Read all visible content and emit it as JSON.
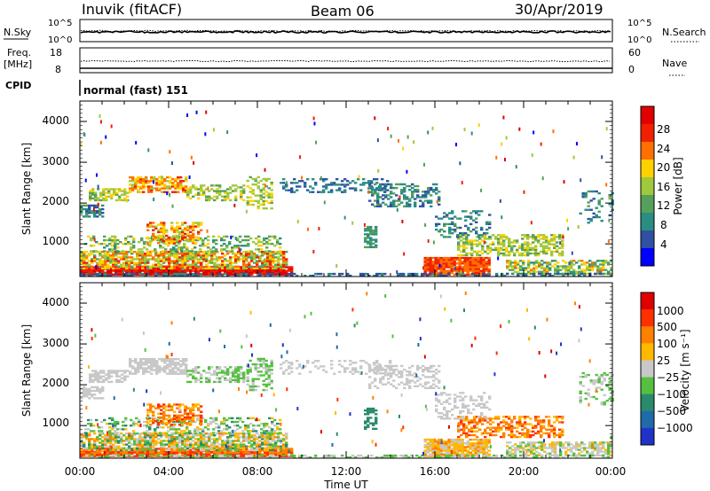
{
  "header": {
    "site": "Inuvik (fitACF)",
    "beam": "Beam 06",
    "date": "30/Apr/2019"
  },
  "top_panels": {
    "nsky_label": "N.Sky",
    "nsearch_label": "N.Search",
    "nsky_ticks": [
      "10^5",
      "10^0"
    ],
    "nsearch_ticks": [
      "10^5",
      "10^0"
    ],
    "freq_label": "Freq.",
    "freq_unit": "[MHz]",
    "freq_ticks": [
      "18",
      "8"
    ],
    "nave_label": "Nave",
    "nave_ticks": [
      "60",
      "0"
    ],
    "cpid_label": "CPID",
    "cpid_value": "normal (fast) 151"
  },
  "chart_data": [
    {
      "type": "heatmap",
      "name": "power",
      "ylabel": "Slant Range [km]",
      "xlabel": "",
      "ylim": [
        200,
        4500
      ],
      "y_ticks": [
        "4000",
        "3000",
        "2000",
        "1000"
      ],
      "colorbar_label": "Power [dB]",
      "colorbar_ticks": [
        "28",
        "24",
        "20",
        "16",
        "12",
        "8",
        "4"
      ],
      "colors": [
        "#0000ff",
        "#2f50a3",
        "#2a8d83",
        "#55a05a",
        "#a0c83c",
        "#ffd000",
        "#ff7000",
        "#f02000",
        "#e00000"
      ]
    },
    {
      "type": "heatmap",
      "name": "velocity",
      "ylabel": "Slant Range [km]",
      "xlabel": "Time UT",
      "ylim": [
        200,
        4500
      ],
      "y_ticks": [
        "4000",
        "3000",
        "2000",
        "1000"
      ],
      "x_ticks": [
        "00:00",
        "04:00",
        "08:00",
        "12:00",
        "16:00",
        "20:00",
        "00:00"
      ],
      "colorbar_label": "Velocity [m s⁻¹]",
      "colorbar_ticks": [
        "1000",
        "500",
        "100",
        "25",
        "−25",
        "−100",
        "−500",
        "−1000"
      ],
      "colors": [
        "#1f33c8",
        "#1f6aa8",
        "#2a8a6c",
        "#55c040",
        "#c8c8c8",
        "#ffb800",
        "#ff8000",
        "#ff3000",
        "#e00000"
      ]
    }
  ]
}
